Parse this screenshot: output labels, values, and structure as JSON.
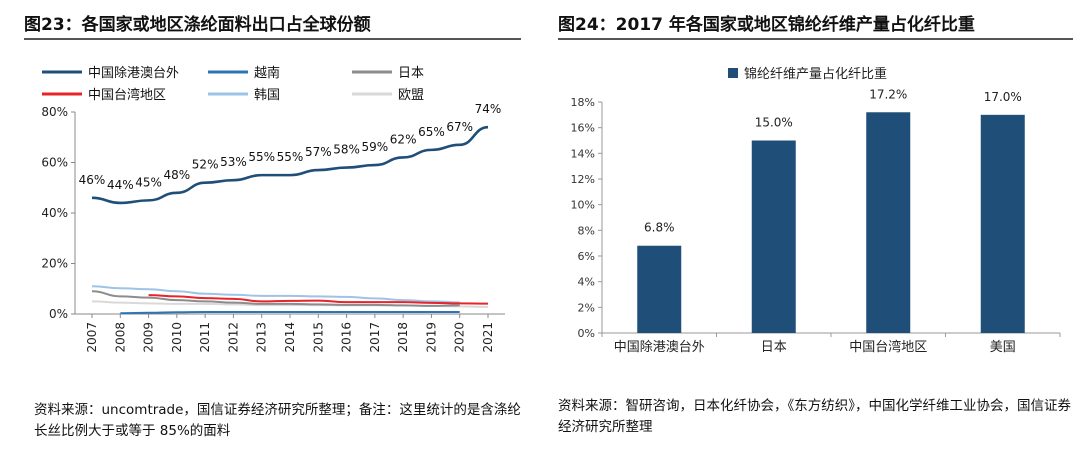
{
  "left": {
    "title": "图23：各国家或地区涤纶面料出口占全球份额",
    "source": "资料来源：uncomtrade，国信证券经济研究所整理；备注：这里统计的是含涤纶长丝比例大于或等于 85%的面料"
  },
  "right": {
    "title": "图24：2017 年各国家或地区锦纶纤维产量占化纤比重",
    "source": "资料来源：智研咨询，日本化纤协会，《东方纺织》，中国化学纤维工业协会，国信证券经济研究所整理"
  },
  "chart_data": [
    {
      "type": "line",
      "title": "各国家或地区涤纶面料出口占全球份额",
      "x": [
        "2007",
        "2008",
        "2009",
        "2010",
        "2011",
        "2012",
        "2013",
        "2014",
        "2015",
        "2016",
        "2017",
        "2018",
        "2019",
        "2020",
        "2021"
      ],
      "ylim": [
        0,
        80
      ],
      "yticks": [
        "0%",
        "20%",
        "40%",
        "60%",
        "80%"
      ],
      "legend_position": "top",
      "series": [
        {
          "name": "中国除港澳台外",
          "color": "#1f4e79",
          "values": [
            46,
            44,
            45,
            48,
            52,
            53,
            55,
            55,
            57,
            58,
            59,
            62,
            65,
            67,
            74
          ],
          "labels": [
            "46%",
            "44%",
            "45%",
            "48%",
            "52%",
            "53%",
            "55%",
            "55%",
            "57%",
            "58%",
            "59%",
            "62%",
            "65%",
            "67%",
            "74%"
          ]
        },
        {
          "name": "越南",
          "color": "#2e75b6",
          "values": [
            null,
            0.3,
            0.5,
            0.7,
            0.8,
            0.8,
            0.8,
            0.8,
            0.8,
            0.8,
            0.8,
            0.8,
            0.8,
            0.8,
            null
          ]
        },
        {
          "name": "日本",
          "color": "#8c8c8c",
          "values": [
            9,
            7,
            6.5,
            5.5,
            5,
            4.5,
            4,
            4,
            3.8,
            3.6,
            3.6,
            3.4,
            3.2,
            3.4,
            null
          ]
        },
        {
          "name": "中国台湾地区",
          "color": "#e8232a",
          "values": [
            null,
            null,
            7.5,
            7,
            6.3,
            6,
            5,
            5.2,
            5.3,
            4.7,
            4.7,
            4.7,
            4.4,
            4.2,
            4.1
          ]
        },
        {
          "name": "韩国",
          "color": "#9dc3e6",
          "values": [
            11,
            10.2,
            9.8,
            9,
            8,
            7.6,
            7.2,
            7.2,
            7,
            6.8,
            6.2,
            5.5,
            5,
            4.6,
            null
          ]
        },
        {
          "name": "欧盟",
          "color": "#d9d9d9",
          "values": [
            5,
            4.5,
            4.2,
            4,
            4,
            3.8,
            3.5,
            3.5,
            3.5,
            3.4,
            3.4,
            3.4,
            3.2,
            3,
            2.8
          ]
        }
      ]
    },
    {
      "type": "bar",
      "title": "2017 年各国家或地区锦纶纤维产量占化纤比重",
      "legend": "锦纶纤维产量占化纤比重",
      "legend_position": "top",
      "categories": [
        "中国除港澳台外",
        "日本",
        "中国台湾地区",
        "美国"
      ],
      "values": [
        6.8,
        15.0,
        17.2,
        17.0
      ],
      "labels": [
        "6.8%",
        "15.0%",
        "17.2%",
        "17.0%"
      ],
      "ylim": [
        0,
        18
      ],
      "yticks": [
        "0%",
        "2%",
        "4%",
        "6%",
        "8%",
        "10%",
        "12%",
        "14%",
        "16%",
        "18%"
      ],
      "color": "#1f4e79"
    }
  ]
}
